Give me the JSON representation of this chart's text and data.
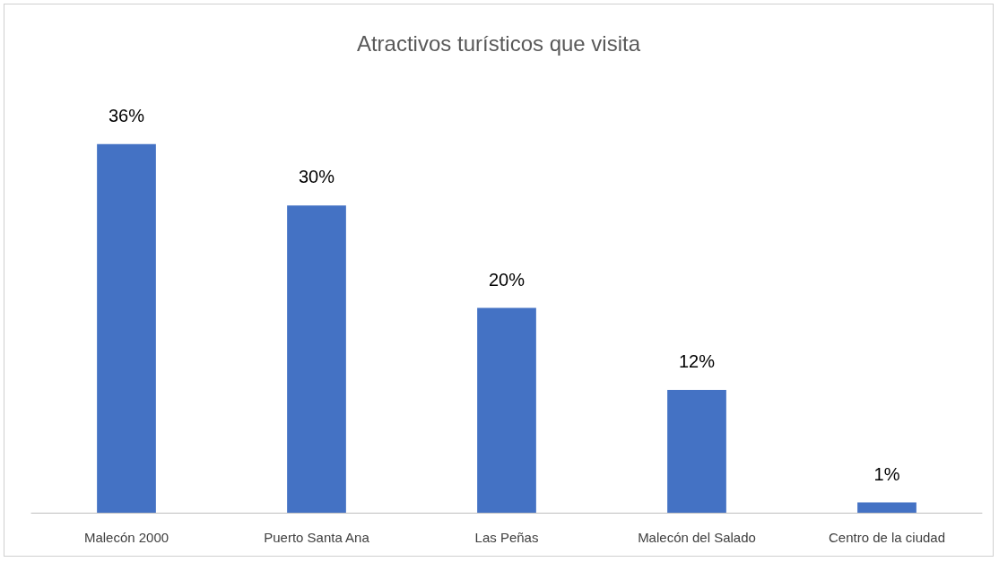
{
  "chart_data": {
    "type": "bar",
    "title": "Atractivos turísticos que visita",
    "categories": [
      "Malecón 2000",
      "Puerto Santa Ana",
      "Las Peñas",
      "Malecón del Salado",
      "Centro de la ciudad"
    ],
    "values": [
      36,
      30,
      20,
      12,
      1
    ],
    "value_labels": [
      "36%",
      "30%",
      "20%",
      "12%",
      "1%"
    ],
    "color": "#4472c4",
    "tick_labels": "x"
  }
}
